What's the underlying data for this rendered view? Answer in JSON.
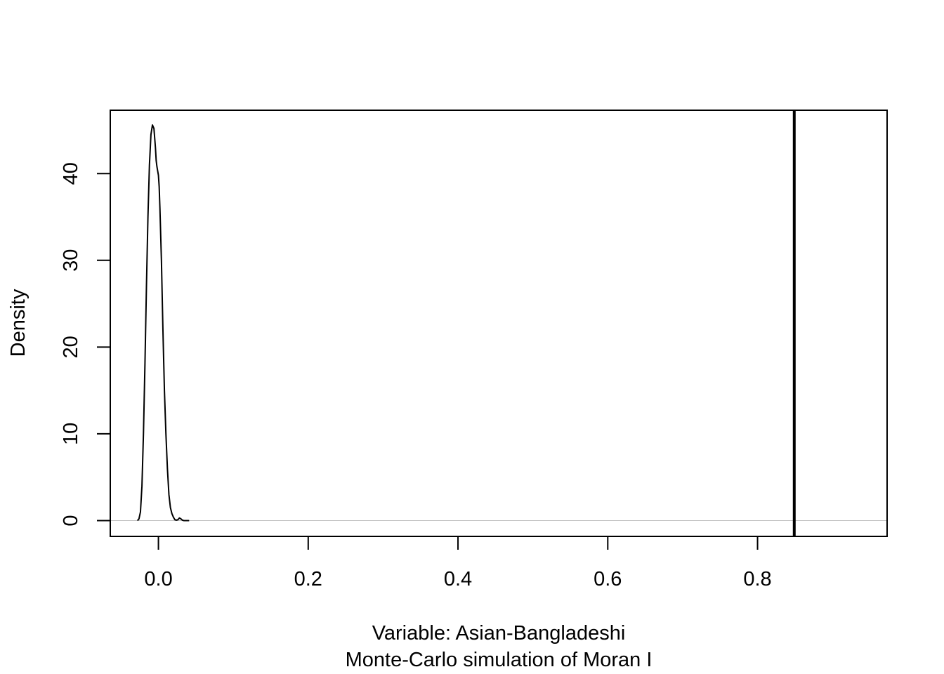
{
  "chart_data": {
    "type": "line",
    "xlabel": "Variable: Asian-Bangladeshi",
    "subtitle": "Monte-Carlo simulation of Moran I",
    "ylabel": "Density",
    "xlim": [
      -0.0643,
      0.973
    ],
    "ylim": [
      -1.82,
      47.3
    ],
    "x_ticks": [
      0.0,
      0.2,
      0.4,
      0.6,
      0.8
    ],
    "x_tick_labels": [
      "0.0",
      "0.2",
      "0.4",
      "0.6",
      "0.8"
    ],
    "y_ticks": [
      0,
      10,
      20,
      30,
      40
    ],
    "y_tick_labels": [
      "0",
      "10",
      "20",
      "30",
      "40"
    ],
    "grid": false,
    "baseline": 0,
    "observed_value": 0.849,
    "series": [
      {
        "x": [
          -0.028,
          -0.026,
          -0.024,
          -0.022,
          -0.02,
          -0.018,
          -0.016,
          -0.014,
          -0.012,
          -0.01,
          -0.008,
          -0.006,
          -0.004,
          -0.003,
          -0.002,
          -0.001,
          0.0,
          0.001,
          0.002,
          0.004,
          0.006,
          0.008,
          0.01,
          0.012,
          0.014,
          0.016,
          0.018,
          0.02,
          0.022,
          0.024,
          0.026,
          0.028,
          0.03,
          0.032,
          0.034,
          0.036,
          0.038,
          0.041
        ],
        "y": [
          0.0,
          0.2,
          1.0,
          4.0,
          10.0,
          18.0,
          27.0,
          35.0,
          41.0,
          44.5,
          45.6,
          45.2,
          43.0,
          41.5,
          40.8,
          40.3,
          39.8,
          38.5,
          36.0,
          30.0,
          22.0,
          15.0,
          10.0,
          6.0,
          3.0,
          1.5,
          0.8,
          0.4,
          0.1,
          0.05,
          0.1,
          0.3,
          0.2,
          0.05,
          0.0,
          0.0,
          0.0,
          0.0
        ]
      }
    ]
  }
}
